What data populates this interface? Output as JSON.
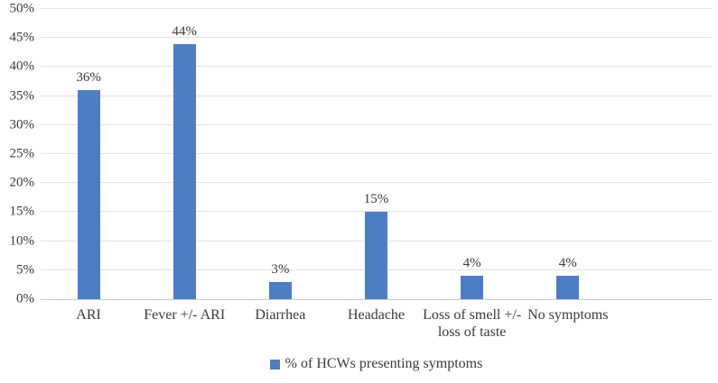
{
  "chart_data": {
    "type": "bar",
    "title": "",
    "xlabel": "",
    "ylabel": "",
    "categories": [
      "ARI",
      "Fever +/- ARI",
      "Diarrhea",
      "Headache",
      "Loss of smell +/- loss of taste",
      "No symptoms"
    ],
    "values": [
      36,
      44,
      3,
      15,
      4,
      4
    ],
    "data_labels": [
      "36%",
      "44%",
      "3%",
      "15%",
      "4%",
      "4%"
    ],
    "legend": "% of HCWs presenting symptoms",
    "legend_position": "bottom-center",
    "ylim": [
      0,
      50
    ],
    "ytick_step": 5,
    "ytick_labels": [
      "0%",
      "5%",
      "10%",
      "15%",
      "20%",
      "25%",
      "30%",
      "35%",
      "40%",
      "45%",
      "50%"
    ],
    "grid": true,
    "extra_empty_category_slots": 1,
    "colors": {
      "bar": "#4d7ec4",
      "gridline": "#e2e2e2",
      "axis_line": "#c9c9c9",
      "text": "#3a3a3a",
      "background": "#ffffff"
    }
  }
}
